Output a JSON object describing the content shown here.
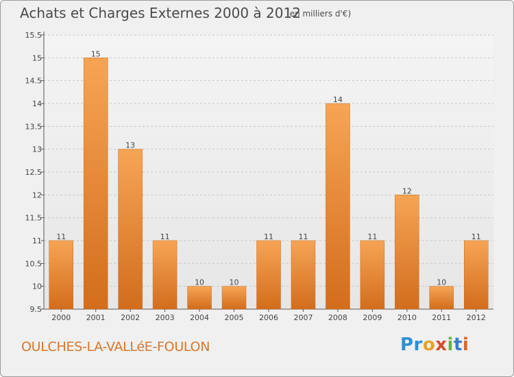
{
  "header": {
    "title": "Achats et Charges Externes 2000 à 2012",
    "unit": "(en milliers d'€)"
  },
  "footer": {
    "commune": "OULCHES-LA-VALLéE-FOULON",
    "logo": [
      "Pr",
      "o",
      "x",
      "i",
      "t",
      "i"
    ]
  },
  "chart_data": {
    "type": "bar",
    "title": "Achats et Charges Externes 2000 à 2012",
    "subtitle": "(en milliers d'€)",
    "categories": [
      "2000",
      "2001",
      "2002",
      "2003",
      "2004",
      "2005",
      "2006",
      "2007",
      "2008",
      "2009",
      "2010",
      "2011",
      "2012"
    ],
    "values": [
      11,
      15,
      13,
      11,
      10,
      10,
      11,
      11,
      14,
      11,
      12,
      10,
      11
    ],
    "ylim": [
      9.5,
      15.5
    ],
    "yticks": [
      "9.5",
      "10",
      "10.5",
      "11",
      "11.5",
      "12",
      "12.5",
      "13",
      "13.5",
      "14",
      "14.5",
      "15",
      "15.5"
    ],
    "grid": true,
    "bar_color": "#f0953f",
    "bar_color_dark": "#d26d1c"
  }
}
